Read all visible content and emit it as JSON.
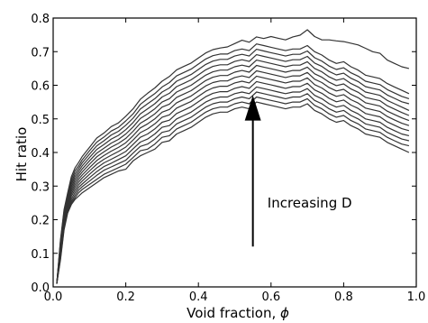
{
  "chart_data": {
    "type": "line",
    "xlabel": "Void fraction,",
    "xlabel_symbol": "ϕ",
    "ylabel": "Hit ratio",
    "xlim": [
      0.0,
      1.0
    ],
    "ylim": [
      0.0,
      0.8
    ],
    "xticks": [
      "0.0",
      "0.2",
      "0.4",
      "0.6",
      "0.8",
      "1.0"
    ],
    "yticks": [
      "0.0",
      "0.1",
      "0.2",
      "0.3",
      "0.4",
      "0.5",
      "0.6",
      "0.7",
      "0.8"
    ],
    "grid": false,
    "legend": "none",
    "line_color": "#333333",
    "annotation": {
      "text": "Increasing D",
      "arrow_from": [
        0.55,
        0.12
      ],
      "arrow_to": [
        0.55,
        0.57
      ],
      "text_pos": [
        0.59,
        0.25
      ]
    },
    "x": [
      0.01,
      0.02,
      0.03,
      0.04,
      0.05,
      0.06,
      0.07,
      0.08,
      0.1,
      0.12,
      0.14,
      0.16,
      0.18,
      0.2,
      0.22,
      0.24,
      0.26,
      0.28,
      0.3,
      0.32,
      0.34,
      0.36,
      0.38,
      0.4,
      0.42,
      0.44,
      0.46,
      0.48,
      0.5,
      0.52,
      0.54,
      0.56,
      0.58,
      0.6,
      0.62,
      0.64,
      0.66,
      0.68,
      0.7,
      0.72,
      0.74,
      0.76,
      0.78,
      0.8,
      0.82,
      0.84,
      0.86,
      0.88,
      0.9,
      0.92,
      0.94,
      0.96,
      0.98
    ],
    "series": [
      {
        "values": [
          0.01,
          0.08,
          0.17,
          0.22,
          0.245,
          0.26,
          0.27,
          0.28,
          0.295,
          0.31,
          0.325,
          0.335,
          0.345,
          0.35,
          0.375,
          0.39,
          0.4,
          0.41,
          0.43,
          0.435,
          0.455,
          0.465,
          0.475,
          0.49,
          0.505,
          0.515,
          0.52,
          0.52,
          0.53,
          0.535,
          0.53,
          0.55,
          0.545,
          0.54,
          0.535,
          0.53,
          0.535,
          0.535,
          0.545,
          0.525,
          0.515,
          0.5,
          0.49,
          0.495,
          0.48,
          0.47,
          0.455,
          0.45,
          0.445,
          0.43,
          0.42,
          0.41,
          0.4
        ]
      },
      {
        "values": [
          0.01,
          0.085,
          0.175,
          0.225,
          0.25,
          0.265,
          0.28,
          0.29,
          0.305,
          0.32,
          0.335,
          0.345,
          0.355,
          0.365,
          0.385,
          0.405,
          0.41,
          0.425,
          0.445,
          0.45,
          0.47,
          0.48,
          0.49,
          0.505,
          0.52,
          0.53,
          0.535,
          0.535,
          0.545,
          0.55,
          0.545,
          0.565,
          0.56,
          0.555,
          0.55,
          0.545,
          0.55,
          0.55,
          0.56,
          0.54,
          0.53,
          0.515,
          0.505,
          0.51,
          0.495,
          0.485,
          0.47,
          0.465,
          0.46,
          0.445,
          0.435,
          0.425,
          0.42
        ]
      },
      {
        "values": [
          0.01,
          0.09,
          0.18,
          0.23,
          0.255,
          0.272,
          0.288,
          0.298,
          0.315,
          0.332,
          0.347,
          0.357,
          0.367,
          0.377,
          0.398,
          0.418,
          0.425,
          0.44,
          0.46,
          0.465,
          0.485,
          0.495,
          0.505,
          0.52,
          0.535,
          0.545,
          0.55,
          0.55,
          0.56,
          0.565,
          0.56,
          0.58,
          0.575,
          0.57,
          0.565,
          0.56,
          0.565,
          0.565,
          0.575,
          0.555,
          0.545,
          0.53,
          0.52,
          0.525,
          0.51,
          0.5,
          0.485,
          0.48,
          0.475,
          0.46,
          0.45,
          0.44,
          0.435
        ]
      },
      {
        "values": [
          0.01,
          0.095,
          0.185,
          0.235,
          0.262,
          0.28,
          0.296,
          0.306,
          0.325,
          0.343,
          0.358,
          0.368,
          0.379,
          0.39,
          0.411,
          0.431,
          0.44,
          0.455,
          0.475,
          0.48,
          0.5,
          0.51,
          0.52,
          0.535,
          0.55,
          0.56,
          0.565,
          0.565,
          0.575,
          0.58,
          0.575,
          0.595,
          0.59,
          0.585,
          0.58,
          0.575,
          0.58,
          0.58,
          0.59,
          0.57,
          0.56,
          0.545,
          0.535,
          0.54,
          0.525,
          0.515,
          0.5,
          0.495,
          0.49,
          0.475,
          0.465,
          0.455,
          0.45
        ]
      },
      {
        "values": [
          0.01,
          0.1,
          0.19,
          0.24,
          0.27,
          0.288,
          0.304,
          0.315,
          0.335,
          0.354,
          0.369,
          0.38,
          0.391,
          0.403,
          0.424,
          0.445,
          0.455,
          0.47,
          0.49,
          0.496,
          0.516,
          0.526,
          0.536,
          0.551,
          0.566,
          0.576,
          0.581,
          0.581,
          0.591,
          0.596,
          0.591,
          0.611,
          0.606,
          0.601,
          0.596,
          0.591,
          0.596,
          0.596,
          0.606,
          0.586,
          0.576,
          0.561,
          0.551,
          0.556,
          0.541,
          0.531,
          0.516,
          0.511,
          0.506,
          0.491,
          0.481,
          0.471,
          0.465
        ]
      },
      {
        "values": [
          0.01,
          0.105,
          0.195,
          0.245,
          0.277,
          0.296,
          0.312,
          0.324,
          0.345,
          0.365,
          0.38,
          0.392,
          0.403,
          0.416,
          0.437,
          0.459,
          0.47,
          0.485,
          0.505,
          0.512,
          0.532,
          0.542,
          0.552,
          0.567,
          0.582,
          0.592,
          0.597,
          0.597,
          0.607,
          0.612,
          0.607,
          0.627,
          0.622,
          0.617,
          0.612,
          0.607,
          0.612,
          0.612,
          0.622,
          0.602,
          0.592,
          0.577,
          0.567,
          0.572,
          0.557,
          0.547,
          0.532,
          0.527,
          0.522,
          0.507,
          0.497,
          0.487,
          0.48
        ]
      },
      {
        "values": [
          0.01,
          0.11,
          0.2,
          0.25,
          0.284,
          0.304,
          0.32,
          0.333,
          0.355,
          0.376,
          0.391,
          0.404,
          0.415,
          0.429,
          0.45,
          0.473,
          0.485,
          0.5,
          0.52,
          0.528,
          0.548,
          0.558,
          0.568,
          0.583,
          0.598,
          0.608,
          0.613,
          0.613,
          0.623,
          0.628,
          0.623,
          0.643,
          0.638,
          0.633,
          0.628,
          0.623,
          0.628,
          0.628,
          0.638,
          0.618,
          0.608,
          0.593,
          0.583,
          0.588,
          0.573,
          0.563,
          0.548,
          0.543,
          0.538,
          0.523,
          0.513,
          0.503,
          0.495
        ]
      },
      {
        "values": [
          0.01,
          0.115,
          0.205,
          0.255,
          0.291,
          0.312,
          0.328,
          0.342,
          0.365,
          0.387,
          0.402,
          0.416,
          0.427,
          0.442,
          0.463,
          0.487,
          0.5,
          0.515,
          0.535,
          0.544,
          0.564,
          0.574,
          0.584,
          0.599,
          0.614,
          0.624,
          0.629,
          0.629,
          0.639,
          0.644,
          0.639,
          0.659,
          0.654,
          0.649,
          0.644,
          0.639,
          0.644,
          0.644,
          0.654,
          0.634,
          0.624,
          0.609,
          0.599,
          0.604,
          0.589,
          0.579,
          0.564,
          0.559,
          0.554,
          0.539,
          0.529,
          0.519,
          0.51
        ]
      },
      {
        "values": [
          0.01,
          0.12,
          0.21,
          0.26,
          0.298,
          0.32,
          0.336,
          0.351,
          0.375,
          0.398,
          0.413,
          0.428,
          0.439,
          0.455,
          0.476,
          0.501,
          0.515,
          0.53,
          0.55,
          0.56,
          0.58,
          0.59,
          0.6,
          0.615,
          0.63,
          0.64,
          0.645,
          0.645,
          0.655,
          0.66,
          0.655,
          0.675,
          0.67,
          0.665,
          0.66,
          0.655,
          0.66,
          0.66,
          0.67,
          0.65,
          0.64,
          0.625,
          0.615,
          0.62,
          0.605,
          0.595,
          0.58,
          0.575,
          0.57,
          0.555,
          0.545,
          0.535,
          0.525
        ]
      },
      {
        "values": [
          0.01,
          0.125,
          0.215,
          0.265,
          0.305,
          0.328,
          0.344,
          0.36,
          0.385,
          0.409,
          0.424,
          0.44,
          0.451,
          0.468,
          0.489,
          0.515,
          0.53,
          0.545,
          0.565,
          0.576,
          0.596,
          0.606,
          0.616,
          0.631,
          0.646,
          0.656,
          0.661,
          0.661,
          0.671,
          0.676,
          0.671,
          0.691,
          0.686,
          0.681,
          0.676,
          0.671,
          0.676,
          0.676,
          0.686,
          0.666,
          0.656,
          0.641,
          0.631,
          0.636,
          0.621,
          0.611,
          0.596,
          0.591,
          0.586,
          0.571,
          0.561,
          0.551,
          0.545
        ]
      },
      {
        "values": [
          0.01,
          0.13,
          0.22,
          0.27,
          0.312,
          0.336,
          0.352,
          0.369,
          0.395,
          0.42,
          0.435,
          0.452,
          0.463,
          0.481,
          0.502,
          0.529,
          0.545,
          0.56,
          0.58,
          0.592,
          0.612,
          0.622,
          0.632,
          0.647,
          0.662,
          0.672,
          0.677,
          0.677,
          0.687,
          0.692,
          0.687,
          0.707,
          0.702,
          0.697,
          0.692,
          0.687,
          0.692,
          0.692,
          0.702,
          0.682,
          0.672,
          0.657,
          0.647,
          0.652,
          0.637,
          0.627,
          0.612,
          0.607,
          0.602,
          0.587,
          0.577,
          0.567,
          0.56
        ]
      },
      {
        "values": [
          0.01,
          0.135,
          0.225,
          0.275,
          0.32,
          0.345,
          0.36,
          0.378,
          0.405,
          0.431,
          0.446,
          0.464,
          0.475,
          0.494,
          0.515,
          0.543,
          0.56,
          0.575,
          0.595,
          0.608,
          0.628,
          0.638,
          0.648,
          0.663,
          0.678,
          0.688,
          0.693,
          0.693,
          0.703,
          0.708,
          0.703,
          0.723,
          0.718,
          0.713,
          0.708,
          0.703,
          0.708,
          0.708,
          0.718,
          0.7,
          0.69,
          0.675,
          0.665,
          0.67,
          0.655,
          0.645,
          0.63,
          0.625,
          0.62,
          0.605,
          0.595,
          0.585,
          0.575
        ]
      },
      {
        "values": [
          0.01,
          0.14,
          0.23,
          0.28,
          0.328,
          0.354,
          0.37,
          0.388,
          0.415,
          0.443,
          0.458,
          0.477,
          0.488,
          0.508,
          0.53,
          0.558,
          0.576,
          0.592,
          0.612,
          0.626,
          0.646,
          0.656,
          0.666,
          0.681,
          0.696,
          0.706,
          0.711,
          0.714,
          0.724,
          0.734,
          0.728,
          0.744,
          0.739,
          0.745,
          0.74,
          0.735,
          0.744,
          0.749,
          0.765,
          0.745,
          0.735,
          0.735,
          0.732,
          0.73,
          0.725,
          0.72,
          0.71,
          0.7,
          0.695,
          0.675,
          0.665,
          0.655,
          0.65
        ]
      }
    ]
  }
}
